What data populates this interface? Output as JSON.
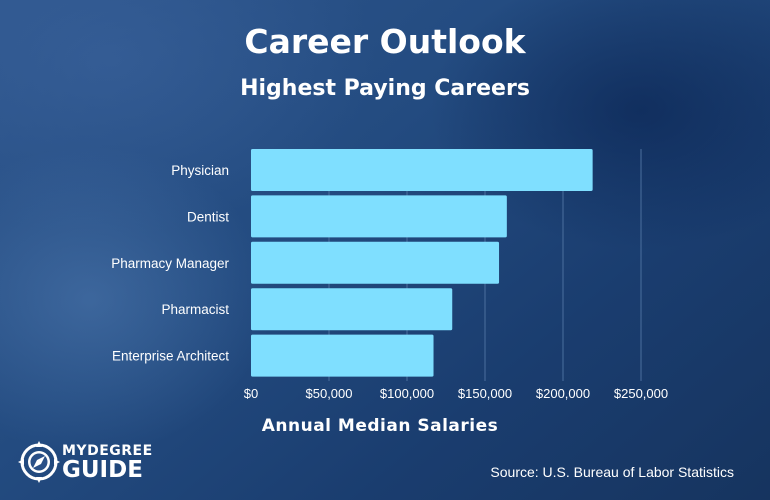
{
  "title": "Career Outlook",
  "subtitle": "Highest Paying Careers",
  "logo": {
    "line1": "MYDEGREE",
    "line2": "GUIDE"
  },
  "source": "Source: U.S. Bureau of Labor Statistics",
  "colors": {
    "bar": "#7fdfff",
    "grid": "#4b6f9e",
    "text": "#ffffff",
    "background": "#234b80"
  },
  "chart_data": {
    "type": "bar",
    "orientation": "horizontal",
    "title": "Career Outlook",
    "subtitle": "Highest Paying Careers",
    "xlabel": "Annual Median Salaries",
    "ylabel": "",
    "categories": [
      "Physician",
      "Dentist",
      "Pharmacy Manager",
      "Pharmacist",
      "Enterprise Architect"
    ],
    "values": [
      219000,
      164000,
      159000,
      129000,
      117000
    ],
    "xlim": [
      0,
      250000
    ],
    "xticks": [
      0,
      50000,
      100000,
      150000,
      200000,
      250000
    ],
    "xtick_labels": [
      "$0",
      "$50,000",
      "$100,000",
      "$150,000",
      "$200,000",
      "$250,000"
    ],
    "grid": "vertical",
    "legend": "none"
  }
}
